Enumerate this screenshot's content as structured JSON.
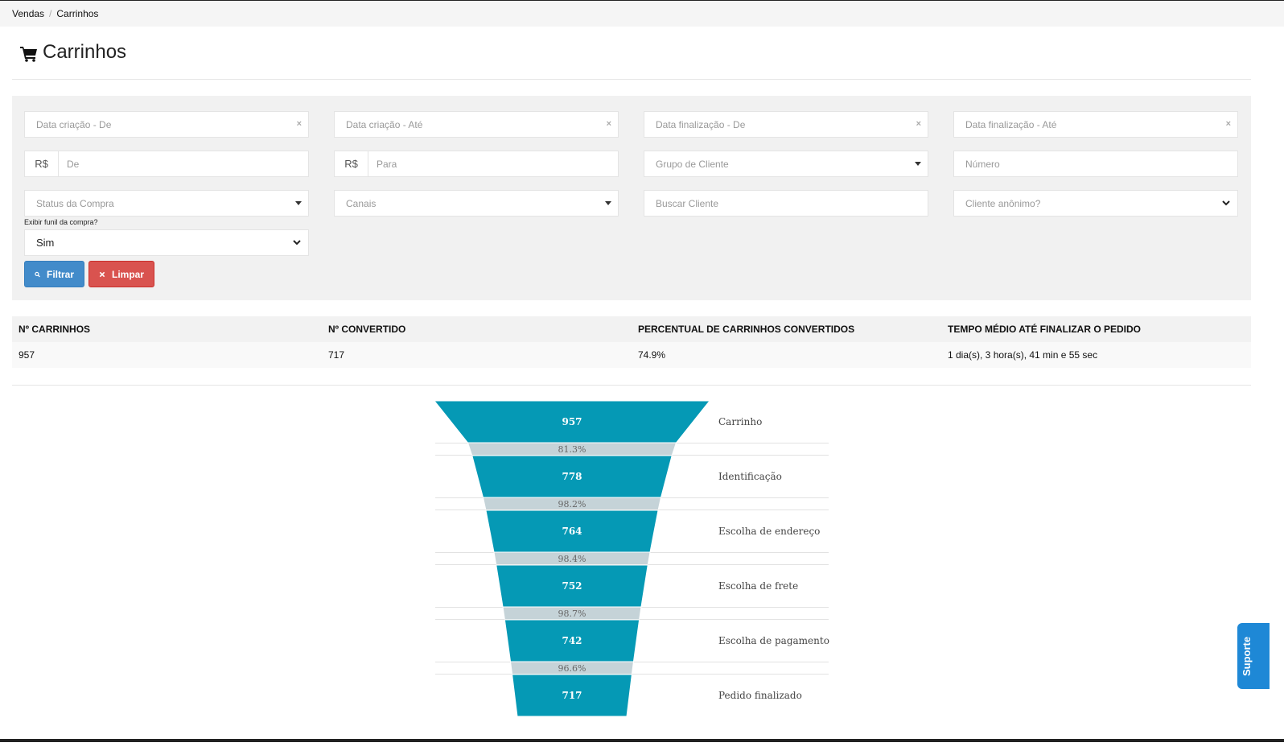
{
  "breadcrumb": {
    "items": [
      "Vendas",
      "Carrinhos"
    ],
    "separator": "/"
  },
  "page": {
    "title": "Carrinhos",
    "icon": "shopping-cart-icon"
  },
  "filters": {
    "date_created_from": "Data criação - De",
    "date_created_to": "Data criação - Até",
    "date_finished_from": "Data finalização - De",
    "date_finished_to": "Data finalização - Até",
    "currency": "R$",
    "value_from": "De",
    "value_to": "Para",
    "customer_group": "Grupo de Cliente",
    "number": "Número",
    "purchase_status": "Status da Compra",
    "channels": "Canais",
    "search_customer": "Buscar Cliente",
    "anonymous_customer": "Cliente anônimo?",
    "show_funnel_label": "Exibir funil da compra?",
    "show_funnel_value": "Sim",
    "clear_symbol": "×",
    "filter_button": "Filtrar",
    "clear_button": "Limpar"
  },
  "stats": {
    "headers": [
      "Nº CARRINHOS",
      "Nº CONVERTIDO",
      "PERCENTUAL DE CARRINHOS CONVERTIDOS",
      "TEMPO MÉDIO ATÉ FINALIZAR O PEDIDO"
    ],
    "values": [
      "957",
      "717",
      "74.9%",
      "1 dia(s), 3 hora(s), 41 min e 55 sec"
    ]
  },
  "chart_data": {
    "type": "funnel",
    "categories": [
      "Carrinho",
      "Identificação",
      "Escolha de endereço",
      "Escolha de frete",
      "Escolha de pagamento",
      "Pedido finalizado"
    ],
    "values": [
      957,
      778,
      764,
      752,
      742,
      717
    ],
    "conversion_labels": [
      "81.3%",
      "98.2%",
      "98.4%",
      "98.7%",
      "96.6%"
    ],
    "colors": {
      "stage": "#0599b5",
      "conversion": "#c5d3d8"
    }
  },
  "support": {
    "label": "Suporte"
  },
  "colors": {
    "primary": "#428bca",
    "danger": "#d9534f",
    "support": "#1e88d6"
  }
}
